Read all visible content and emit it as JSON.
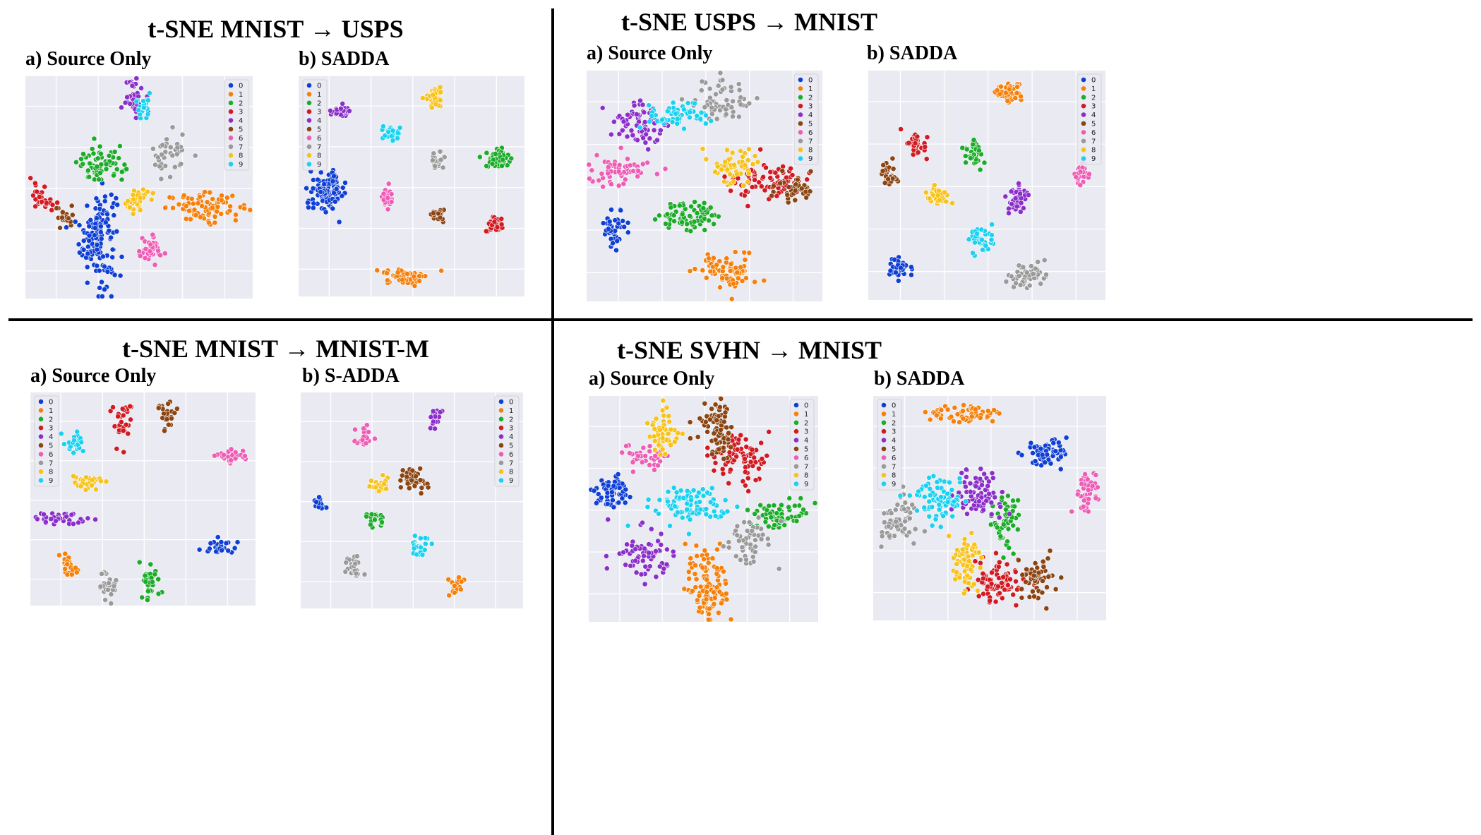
{
  "class_colors": {
    "0": "#0f3fd4",
    "1": "#f5800b",
    "2": "#1dac2a",
    "3": "#d11a22",
    "4": "#8a2fc9",
    "5": "#8b4513",
    "6": "#ee5db5",
    "7": "#9a9a9a",
    "8": "#f7c21a",
    "9": "#1ad1f0"
  },
  "legend_labels": [
    "0",
    "1",
    "2",
    "3",
    "4",
    "5",
    "6",
    "7",
    "8",
    "9"
  ],
  "quadrants": [
    {
      "title": "t-SNE MNIST → USPS",
      "panels": [
        {
          "label": "a) Source Only",
          "legend": "top-right"
        },
        {
          "label": "b) SADDA",
          "legend": "top-left"
        }
      ]
    },
    {
      "title": "t-SNE USPS → MNIST",
      "panels": [
        {
          "label": "a) Source Only",
          "legend": "top-right"
        },
        {
          "label": "b) SADDA",
          "legend": "top-right"
        }
      ]
    },
    {
      "title": "t-SNE MNIST  → MNIST-M",
      "panels": [
        {
          "label": "a) Source Only",
          "legend": "top-left"
        },
        {
          "label": "b) S-ADDA",
          "legend": "top-right"
        }
      ]
    },
    {
      "title": "t-SNE SVHN → MNIST",
      "panels": [
        {
          "label": "a) Source Only",
          "legend": "top-right"
        },
        {
          "label": "b) SADDA",
          "legend": "top-left"
        }
      ]
    }
  ],
  "chart_data": [
    {
      "type": "scatter",
      "plot": "MNIST→USPS source only",
      "grid": true,
      "legend": "top-right",
      "x_range": [
        0,
        100
      ],
      "y_range": [
        0,
        100
      ],
      "clusters": [
        {
          "class": "0",
          "x": 32,
          "y": 28,
          "sx": 4,
          "sy": 11,
          "n": 140
        },
        {
          "class": "1",
          "x": 80,
          "y": 41,
          "sx": 9,
          "sy": 3,
          "n": 80
        },
        {
          "class": "2",
          "x": 33,
          "y": 60,
          "sx": 5,
          "sy": 4,
          "n": 70
        },
        {
          "class": "3",
          "x": 8,
          "y": 46,
          "sx": 3,
          "sy": 3,
          "n": 30
        },
        {
          "class": "4",
          "x": 48,
          "y": 91,
          "sx": 2,
          "sy": 4,
          "n": 35
        },
        {
          "class": "5",
          "x": 17,
          "y": 37,
          "sx": 2,
          "sy": 3,
          "n": 20
        },
        {
          "class": "6",
          "x": 55,
          "y": 21,
          "sx": 3,
          "sy": 3,
          "n": 40
        },
        {
          "class": "7",
          "x": 64,
          "y": 65,
          "sx": 4,
          "sy": 5,
          "n": 35
        },
        {
          "class": "8",
          "x": 48,
          "y": 44,
          "sx": 3,
          "sy": 3,
          "n": 40
        },
        {
          "class": "9",
          "x": 52,
          "y": 87,
          "sx": 1.5,
          "sy": 4,
          "n": 20
        }
      ]
    },
    {
      "type": "scatter",
      "plot": "MNIST→USPS SADDA",
      "grid": true,
      "legend": "top-left",
      "x_range": [
        0,
        100
      ],
      "y_range": [
        0,
        100
      ],
      "clusters": [
        {
          "class": "0",
          "x": 13,
          "y": 48,
          "sx": 4,
          "sy": 4,
          "n": 120
        },
        {
          "class": "1",
          "x": 48,
          "y": 9,
          "sx": 5,
          "sy": 1.6,
          "n": 60
        },
        {
          "class": "2",
          "x": 88,
          "y": 63,
          "sx": 2.5,
          "sy": 2.5,
          "n": 60
        },
        {
          "class": "3",
          "x": 86,
          "y": 32,
          "sx": 2,
          "sy": 2,
          "n": 30
        },
        {
          "class": "4",
          "x": 19,
          "y": 84,
          "sx": 2.5,
          "sy": 1.5,
          "n": 30
        },
        {
          "class": "5",
          "x": 61,
          "y": 37,
          "sx": 1.5,
          "sy": 1.5,
          "n": 18
        },
        {
          "class": "6",
          "x": 39,
          "y": 44,
          "sx": 1.5,
          "sy": 2.2,
          "n": 25
        },
        {
          "class": "7",
          "x": 61,
          "y": 62,
          "sx": 1.5,
          "sy": 2.2,
          "n": 25
        },
        {
          "class": "8",
          "x": 60,
          "y": 90,
          "sx": 2,
          "sy": 2,
          "n": 35
        },
        {
          "class": "9",
          "x": 41,
          "y": 74,
          "sx": 2.5,
          "sy": 1.5,
          "n": 35
        }
      ]
    },
    {
      "type": "scatter",
      "plot": "USPS→MNIST source only",
      "grid": true,
      "legend": "top-right",
      "x_range": [
        0,
        100
      ],
      "y_range": [
        0,
        100
      ],
      "clusters": [
        {
          "class": "0",
          "x": 12,
          "y": 32,
          "sx": 2.5,
          "sy": 4,
          "n": 45
        },
        {
          "class": "1",
          "x": 60,
          "y": 13,
          "sx": 6,
          "sy": 4,
          "n": 70
        },
        {
          "class": "2",
          "x": 44,
          "y": 37,
          "sx": 7,
          "sy": 3,
          "n": 70
        },
        {
          "class": "3",
          "x": 78,
          "y": 52,
          "sx": 8,
          "sy": 4,
          "n": 80
        },
        {
          "class": "4",
          "x": 23,
          "y": 77,
          "sx": 6,
          "sy": 5,
          "n": 70
        },
        {
          "class": "5",
          "x": 88,
          "y": 49,
          "sx": 4,
          "sy": 3,
          "n": 40
        },
        {
          "class": "6",
          "x": 13,
          "y": 57,
          "sx": 7,
          "sy": 3,
          "n": 60
        },
        {
          "class": "7",
          "x": 58,
          "y": 87,
          "sx": 6,
          "sy": 4,
          "n": 60
        },
        {
          "class": "8",
          "x": 62,
          "y": 58,
          "sx": 5,
          "sy": 4,
          "n": 55
        },
        {
          "class": "9",
          "x": 38,
          "y": 81,
          "sx": 7,
          "sy": 3,
          "n": 60
        }
      ]
    },
    {
      "type": "scatter",
      "plot": "USPS→MNIST SADDA",
      "grid": true,
      "legend": "top-right",
      "x_range": [
        0,
        100
      ],
      "y_range": [
        0,
        100
      ],
      "clusters": [
        {
          "class": "0",
          "x": 13,
          "y": 14,
          "sx": 2.2,
          "sy": 2.2,
          "n": 45
        },
        {
          "class": "1",
          "x": 60,
          "y": 90,
          "sx": 3,
          "sy": 2.5,
          "n": 45
        },
        {
          "class": "2",
          "x": 44,
          "y": 64,
          "sx": 2.2,
          "sy": 3,
          "n": 40
        },
        {
          "class": "3",
          "x": 20,
          "y": 68,
          "sx": 2.2,
          "sy": 3,
          "n": 35
        },
        {
          "class": "4",
          "x": 63,
          "y": 45,
          "sx": 2.2,
          "sy": 3.5,
          "n": 45
        },
        {
          "class": "5",
          "x": 9,
          "y": 55,
          "sx": 2.2,
          "sy": 2.5,
          "n": 30
        },
        {
          "class": "6",
          "x": 90,
          "y": 55,
          "sx": 2,
          "sy": 2.5,
          "n": 30
        },
        {
          "class": "7",
          "x": 67,
          "y": 11,
          "sx": 4,
          "sy": 3,
          "n": 55
        },
        {
          "class": "8",
          "x": 29,
          "y": 45,
          "sx": 2.5,
          "sy": 2.5,
          "n": 35
        },
        {
          "class": "9",
          "x": 47,
          "y": 26,
          "sx": 2.5,
          "sy": 3,
          "n": 40
        }
      ]
    },
    {
      "type": "scatter",
      "plot": "MNIST→MNIST-M source only",
      "grid": true,
      "legend": "top-left",
      "x_range": [
        0,
        100
      ],
      "y_range": [
        0,
        100
      ],
      "clusters": [
        {
          "class": "0",
          "x": 84,
          "y": 28,
          "sx": 4,
          "sy": 2,
          "n": 30
        },
        {
          "class": "1",
          "x": 17,
          "y": 18,
          "sx": 2,
          "sy": 3,
          "n": 25
        },
        {
          "class": "2",
          "x": 53,
          "y": 11,
          "sx": 2,
          "sy": 4,
          "n": 35
        },
        {
          "class": "3",
          "x": 41,
          "y": 86,
          "sx": 2,
          "sy": 5,
          "n": 30
        },
        {
          "class": "4",
          "x": 12,
          "y": 41,
          "sx": 5,
          "sy": 1.5,
          "n": 35
        },
        {
          "class": "5",
          "x": 61,
          "y": 90,
          "sx": 2,
          "sy": 3,
          "n": 25
        },
        {
          "class": "6",
          "x": 89,
          "y": 70,
          "sx": 4,
          "sy": 1.6,
          "n": 30
        },
        {
          "class": "7",
          "x": 35,
          "y": 10,
          "sx": 2,
          "sy": 3.5,
          "n": 30
        },
        {
          "class": "8",
          "x": 26,
          "y": 58,
          "sx": 4,
          "sy": 2,
          "n": 30
        },
        {
          "class": "9",
          "x": 20,
          "y": 77,
          "sx": 2,
          "sy": 2.5,
          "n": 25
        }
      ]
    },
    {
      "type": "scatter",
      "plot": "MNIST→MNIST-M S-ADDA",
      "grid": true,
      "legend": "top-right",
      "x_range": [
        0,
        100
      ],
      "y_range": [
        0,
        100
      ],
      "clusters": [
        {
          "class": "0",
          "x": 8,
          "y": 49,
          "sx": 1.5,
          "sy": 1.5,
          "n": 20
        },
        {
          "class": "1",
          "x": 70,
          "y": 10,
          "sx": 1.5,
          "sy": 3,
          "n": 20
        },
        {
          "class": "2",
          "x": 34,
          "y": 41,
          "sx": 2,
          "sy": 2,
          "n": 25
        },
        {
          "class": "4",
          "x": 61,
          "y": 90,
          "sx": 1.5,
          "sy": 3.5,
          "n": 25
        },
        {
          "class": "5",
          "x": 51,
          "y": 59,
          "sx": 3,
          "sy": 3,
          "n": 35
        },
        {
          "class": "6",
          "x": 27,
          "y": 80,
          "sx": 2,
          "sy": 2.5,
          "n": 25
        },
        {
          "class": "7",
          "x": 24,
          "y": 19,
          "sx": 2,
          "sy": 3,
          "n": 25
        },
        {
          "class": "8",
          "x": 35,
          "y": 57,
          "sx": 2,
          "sy": 2,
          "n": 25
        },
        {
          "class": "9",
          "x": 53,
          "y": 29,
          "sx": 2,
          "sy": 2.5,
          "n": 30
        }
      ]
    },
    {
      "type": "scatter",
      "plot": "SVHN→MNIST source only",
      "grid": true,
      "legend": "top-right",
      "x_range": [
        0,
        100
      ],
      "y_range": [
        0,
        100
      ],
      "clusters": [
        {
          "class": "0",
          "x": 11,
          "y": 58,
          "sx": 4,
          "sy": 4,
          "n": 60
        },
        {
          "class": "1",
          "x": 52,
          "y": 16,
          "sx": 5,
          "sy": 8,
          "n": 110
        },
        {
          "class": "2",
          "x": 83,
          "y": 47,
          "sx": 6,
          "sy": 3,
          "n": 70
        },
        {
          "class": "3",
          "x": 66,
          "y": 73,
          "sx": 6,
          "sy": 5,
          "n": 80
        },
        {
          "class": "4",
          "x": 24,
          "y": 30,
          "sx": 6,
          "sy": 5,
          "n": 70
        },
        {
          "class": "5",
          "x": 56,
          "y": 86,
          "sx": 4,
          "sy": 7,
          "n": 80
        },
        {
          "class": "6",
          "x": 24,
          "y": 74,
          "sx": 5,
          "sy": 3,
          "n": 40
        },
        {
          "class": "7",
          "x": 71,
          "y": 35,
          "sx": 5,
          "sy": 5,
          "n": 50
        },
        {
          "class": "8",
          "x": 32,
          "y": 83,
          "sx": 3,
          "sy": 5,
          "n": 55
        },
        {
          "class": "9",
          "x": 44,
          "y": 51,
          "sx": 9,
          "sy": 4,
          "n": 90
        }
      ]
    },
    {
      "type": "scatter",
      "plot": "SVHN→MNIST SADDA",
      "grid": true,
      "legend": "top-left",
      "x_range": [
        0,
        100
      ],
      "y_range": [
        0,
        100
      ],
      "clusters": [
        {
          "class": "0",
          "x": 75,
          "y": 74,
          "sx": 5,
          "sy": 3,
          "n": 60
        },
        {
          "class": "1",
          "x": 38,
          "y": 92,
          "sx": 9,
          "sy": 2,
          "n": 60
        },
        {
          "class": "2",
          "x": 57,
          "y": 45,
          "sx": 3,
          "sy": 7,
          "n": 50
        },
        {
          "class": "3",
          "x": 54,
          "y": 17,
          "sx": 5,
          "sy": 5,
          "n": 80
        },
        {
          "class": "4",
          "x": 45,
          "y": 56,
          "sx": 5,
          "sy": 5,
          "n": 80
        },
        {
          "class": "5",
          "x": 70,
          "y": 20,
          "sx": 4,
          "sy": 5,
          "n": 55
        },
        {
          "class": "6",
          "x": 91,
          "y": 57,
          "sx": 3,
          "sy": 5,
          "n": 45
        },
        {
          "class": "7",
          "x": 11,
          "y": 44,
          "sx": 4,
          "sy": 6,
          "n": 60
        },
        {
          "class": "8",
          "x": 40,
          "y": 25,
          "sx": 3,
          "sy": 7,
          "n": 70
        },
        {
          "class": "9",
          "x": 28,
          "y": 54,
          "sx": 5,
          "sy": 5,
          "n": 75
        }
      ]
    }
  ]
}
